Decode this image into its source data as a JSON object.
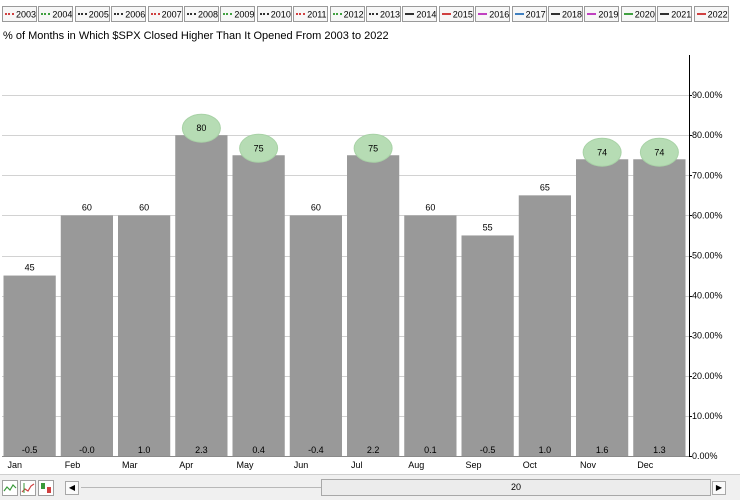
{
  "legend": [
    {
      "label": "2003",
      "color": "#d04040",
      "style": "dotted"
    },
    {
      "label": "2004",
      "color": "#40a040",
      "style": "dotted"
    },
    {
      "label": "2005",
      "color": "#303030",
      "style": "dotted"
    },
    {
      "label": "2006",
      "color": "#303030",
      "style": "dotted"
    },
    {
      "label": "2007",
      "color": "#d04040",
      "style": "dotted"
    },
    {
      "label": "2008",
      "color": "#303030",
      "style": "dotted"
    },
    {
      "label": "2009",
      "color": "#40a040",
      "style": "dotted"
    },
    {
      "label": "2010",
      "color": "#303030",
      "style": "dotted"
    },
    {
      "label": "2011",
      "color": "#d04040",
      "style": "dotted"
    },
    {
      "label": "2012",
      "color": "#40a040",
      "style": "dotted"
    },
    {
      "label": "2013",
      "color": "#303030",
      "style": "dotted"
    },
    {
      "label": "2014",
      "color": "#303030",
      "style": "solid"
    },
    {
      "label": "2015",
      "color": "#d04040",
      "style": "solid"
    },
    {
      "label": "2016",
      "color": "#c040c0",
      "style": "solid"
    },
    {
      "label": "2017",
      "color": "#4080c0",
      "style": "solid"
    },
    {
      "label": "2018",
      "color": "#303030",
      "style": "solid"
    },
    {
      "label": "2019",
      "color": "#c040c0",
      "style": "solid"
    },
    {
      "label": "2020",
      "color": "#40a040",
      "style": "solid"
    },
    {
      "label": "2021",
      "color": "#303030",
      "style": "solid"
    },
    {
      "label": "2022",
      "color": "#d04040",
      "style": "solid"
    }
  ],
  "scrollbar": {
    "value": "20"
  },
  "chart_data": {
    "type": "bar",
    "title": "% of Months in Which $SPX Closed Higher Than It Opened From 2003 to 2022",
    "categories": [
      "Jan",
      "Feb",
      "Mar",
      "Apr",
      "May",
      "Jun",
      "Jul",
      "Aug",
      "Sep",
      "Oct",
      "Nov",
      "Dec"
    ],
    "values": [
      45,
      60,
      60,
      80,
      75,
      60,
      75,
      60,
      55,
      65,
      74,
      74
    ],
    "bottom_labels": [
      "-0.5",
      "-0.0",
      "1.0",
      "2.3",
      "0.4",
      "-0.4",
      "2.2",
      "0.1",
      "-0.5",
      "1.0",
      "1.6",
      "1.3"
    ],
    "highlighted": [
      "Apr",
      "May",
      "Jul",
      "Nov",
      "Dec"
    ],
    "yticks": [
      "0.00%",
      "10.00%",
      "20.00%",
      "30.00%",
      "40.00%",
      "50.00%",
      "60.00%",
      "70.00%",
      "80.00%",
      "90.00%"
    ],
    "ylim": [
      0,
      100
    ],
    "bar_color": "#999999",
    "highlight_color": "#b6dcb4",
    "grid": true
  }
}
